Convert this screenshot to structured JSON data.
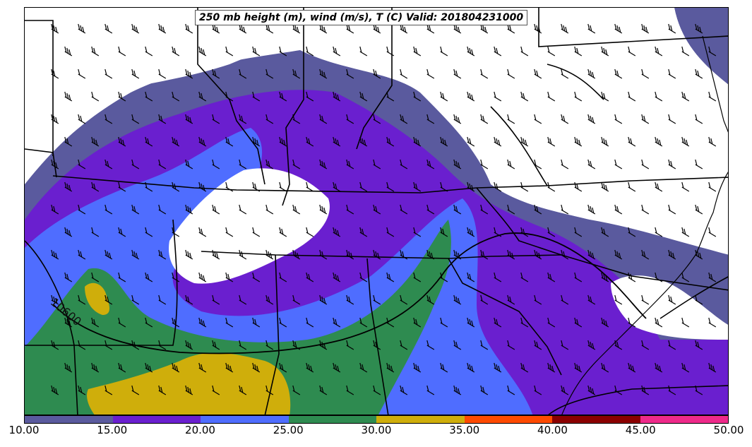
{
  "title": "250 mb height (m), wind (m/s), T (C) Valid: 201804231000",
  "contour_label": "10600",
  "colorbar": {
    "colors": [
      "#5a5a9e",
      "#6a1fcf",
      "#4f6dff",
      "#2e8b50",
      "#cfae0b",
      "#ff4a00",
      "#8b0000",
      "#ee2a8a"
    ],
    "ticks": [
      "10.00",
      "15.00",
      "20.00",
      "25.00",
      "30.00",
      "35.00",
      "40.00",
      "45.00",
      "50.00"
    ]
  },
  "legend": {
    "wind_barbs": "wind-barb-icon",
    "contour": "height-contour-line"
  }
}
